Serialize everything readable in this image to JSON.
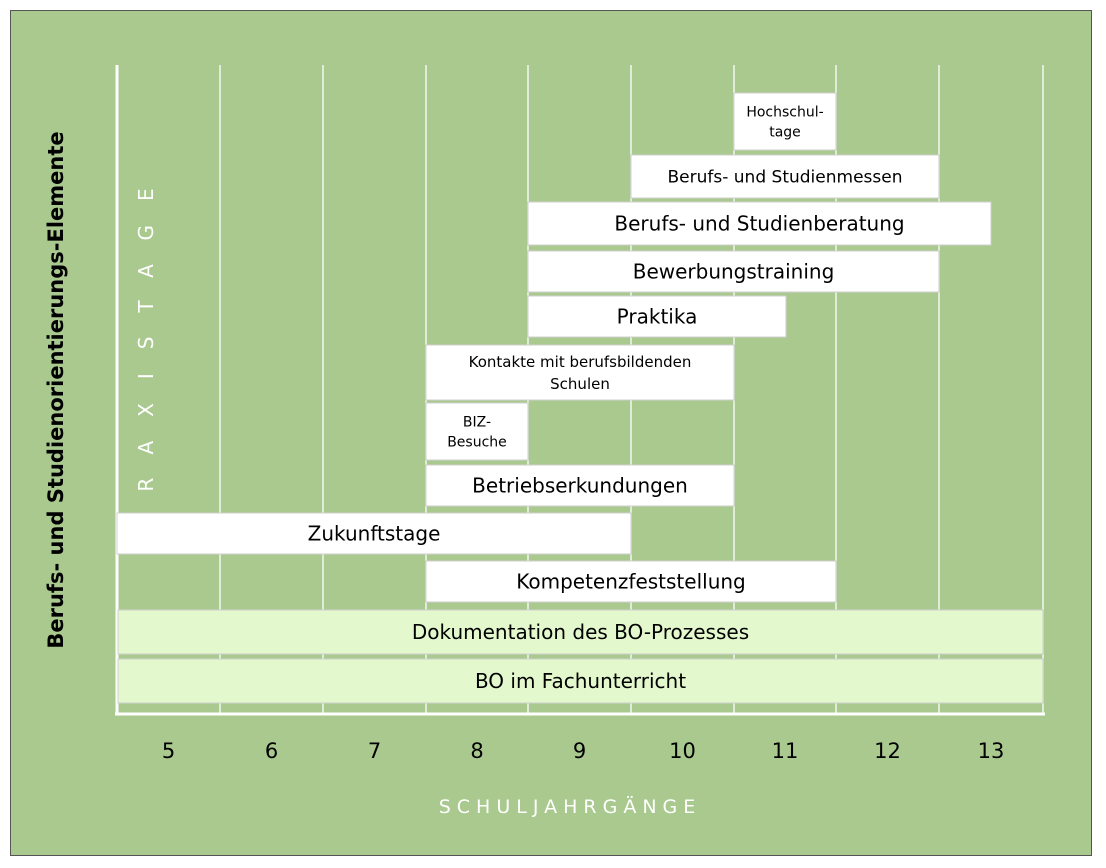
{
  "chart_data": {
    "type": "gantt",
    "ylabel": "Berufs- und Studienorientierungs-Elemente",
    "xlabel": "SCHULJAHRGÄNGE",
    "side_label": "PRAXISTAGE",
    "x_ticks": [
      "5",
      "6",
      "7",
      "8",
      "9",
      "10",
      "11",
      "12",
      "13"
    ],
    "bars": [
      {
        "label": [
          "Hochschul-",
          "tage"
        ],
        "from": "11",
        "to": "11",
        "fill": "#ffffff",
        "font_size": 14
      },
      {
        "label": [
          "Berufs- und Studienmessen"
        ],
        "from": "10",
        "to": "12",
        "fill": "#ffffff",
        "font_size": 17
      },
      {
        "label": [
          "Berufs- und Studienberatung"
        ],
        "from": "9",
        "to": "12½",
        "fill": "#ffffff",
        "font_size": 20
      },
      {
        "label": [
          "Bewerbungstraining"
        ],
        "from": "9",
        "to": "12",
        "fill": "#ffffff",
        "font_size": 20
      },
      {
        "label": [
          "Praktika"
        ],
        "from": "9",
        "to": "10½",
        "fill": "#ffffff",
        "font_size": 20
      },
      {
        "label": [
          "Kontakte mit berufsbildenden",
          "Schulen"
        ],
        "from": "8",
        "to": "10",
        "fill": "#ffffff",
        "font_size": 15
      },
      {
        "label": [
          "BIZ-",
          "Besuche"
        ],
        "from": "8",
        "to": "8",
        "fill": "#ffffff",
        "font_size": 14
      },
      {
        "label": [
          "Betriebserkundungen"
        ],
        "from": "8",
        "to": "10",
        "fill": "#ffffff",
        "font_size": 20
      },
      {
        "label": [
          "Zukunftstage"
        ],
        "from": "5",
        "to": "9",
        "fill": "#ffffff",
        "font_size": 20
      },
      {
        "label": [
          "Kompetenzfeststellung"
        ],
        "from": "8",
        "to": "11",
        "fill": "#ffffff",
        "font_size": 20
      },
      {
        "label": [
          "Dokumentation des BO-Prozesses"
        ],
        "from": "5",
        "to": "13",
        "fill": "#e3f8cc",
        "font_size": 20
      },
      {
        "label": [
          "BO im Fachunterricht"
        ],
        "from": "5",
        "to": "13",
        "fill": "#e3f8cc",
        "font_size": 20
      }
    ],
    "colors": {
      "background": "#a9c98f",
      "grid": "#ffffff",
      "bar": "#ffffff",
      "bar_light": "#e3f8cc"
    }
  }
}
